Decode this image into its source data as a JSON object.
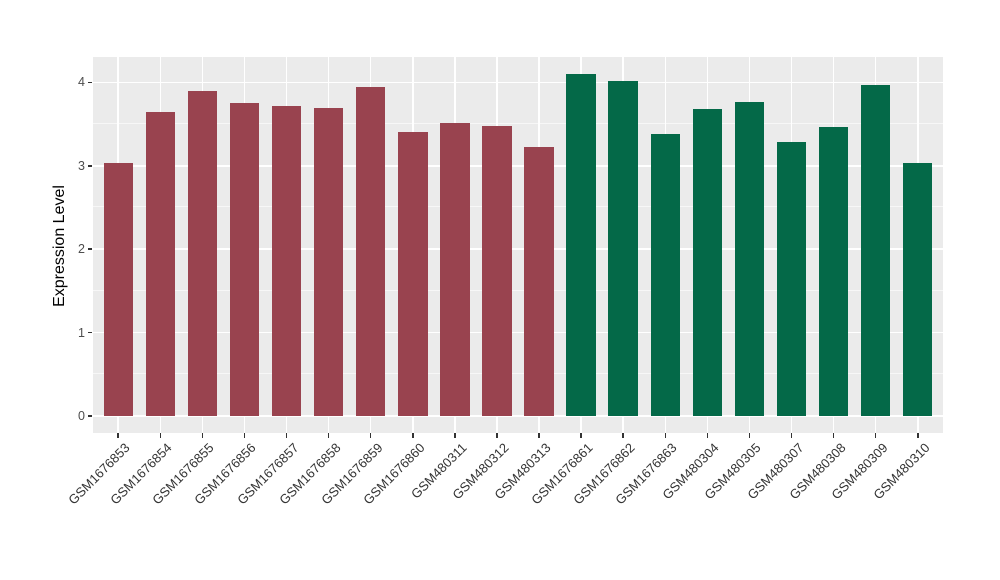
{
  "chart_data": {
    "type": "bar",
    "ylabel": "Expression Level",
    "yticks": [
      0,
      1,
      2,
      3,
      4
    ],
    "yticks_minor": [
      0.5,
      1.5,
      2.5,
      3.5
    ],
    "ylim": [
      -0.2,
      4.3
    ],
    "grid": true,
    "legend_position": "none",
    "panel_bg": "#EBEBEB",
    "grid_color": "#FFFFFF",
    "axis_text_color": "#4D4D4D",
    "group_colors": {
      "group1": "#99434F",
      "group2": "#046948"
    },
    "bars": [
      {
        "label": "GSM1676853",
        "value": 3.03,
        "group": "group1"
      },
      {
        "label": "GSM1676854",
        "value": 3.64,
        "group": "group1"
      },
      {
        "label": "GSM1676855",
        "value": 3.9,
        "group": "group1"
      },
      {
        "label": "GSM1676856",
        "value": 3.75,
        "group": "group1"
      },
      {
        "label": "GSM1676857",
        "value": 3.72,
        "group": "group1"
      },
      {
        "label": "GSM1676858",
        "value": 3.69,
        "group": "group1"
      },
      {
        "label": "GSM1676859",
        "value": 3.95,
        "group": "group1"
      },
      {
        "label": "GSM1676860",
        "value": 3.4,
        "group": "group1"
      },
      {
        "label": "GSM480311",
        "value": 3.51,
        "group": "group1"
      },
      {
        "label": "GSM480312",
        "value": 3.48,
        "group": "group1"
      },
      {
        "label": "GSM480313",
        "value": 3.23,
        "group": "group1"
      },
      {
        "label": "GSM1676861",
        "value": 4.1,
        "group": "group2"
      },
      {
        "label": "GSM1676862",
        "value": 4.02,
        "group": "group2"
      },
      {
        "label": "GSM1676863",
        "value": 3.38,
        "group": "group2"
      },
      {
        "label": "GSM480304",
        "value": 3.68,
        "group": "group2"
      },
      {
        "label": "GSM480305",
        "value": 3.76,
        "group": "group2"
      },
      {
        "label": "GSM480307",
        "value": 3.28,
        "group": "group2"
      },
      {
        "label": "GSM480308",
        "value": 3.46,
        "group": "group2"
      },
      {
        "label": "GSM480309",
        "value": 3.97,
        "group": "group2"
      },
      {
        "label": "GSM480310",
        "value": 3.03,
        "group": "group2"
      }
    ]
  }
}
